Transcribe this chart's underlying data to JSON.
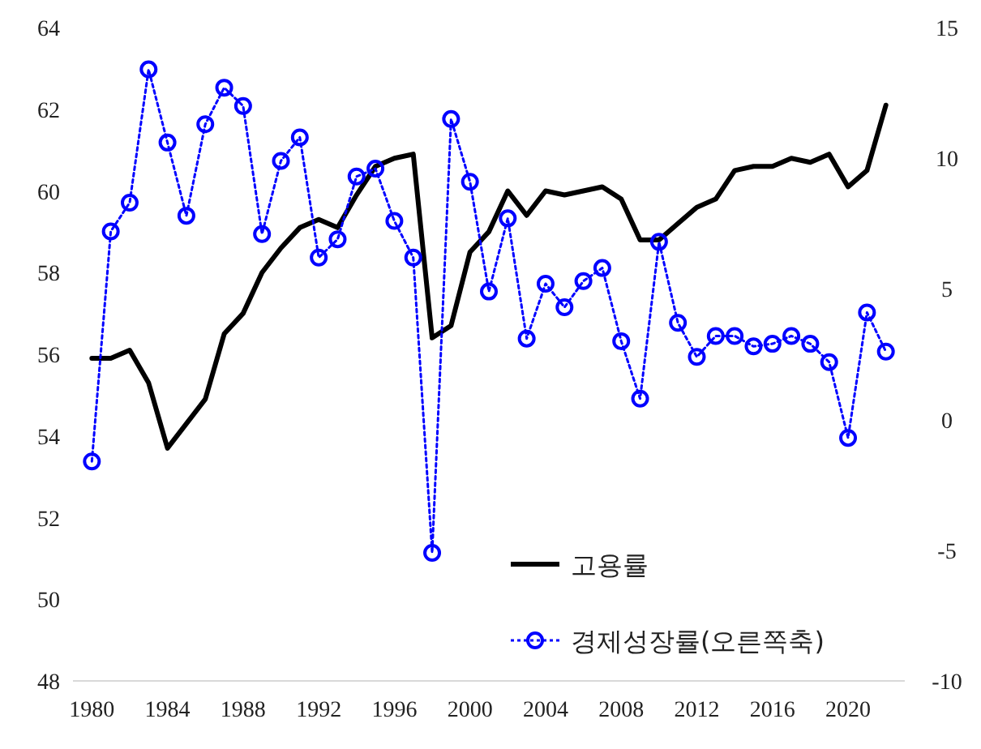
{
  "chart_data": {
    "type": "line",
    "x": [
      1980,
      1981,
      1982,
      1983,
      1984,
      1985,
      1986,
      1987,
      1988,
      1989,
      1990,
      1991,
      1992,
      1993,
      1994,
      1995,
      1996,
      1997,
      1998,
      1999,
      2000,
      2001,
      2002,
      2003,
      2004,
      2005,
      2006,
      2007,
      2008,
      2009,
      2010,
      2011,
      2012,
      2013,
      2014,
      2015,
      2016,
      2017,
      2018,
      2019,
      2020,
      2021,
      2022
    ],
    "xlim": [
      1979,
      2023
    ],
    "xticks": [
      1980,
      1984,
      1988,
      1992,
      1996,
      2000,
      2004,
      2008,
      2012,
      2016,
      2020
    ],
    "ylim": [
      48,
      64
    ],
    "yticks": [
      48,
      50,
      52,
      54,
      56,
      58,
      60,
      62,
      64
    ],
    "y2lim": [
      -10,
      15
    ],
    "y2ticks": [
      -10,
      -5,
      0,
      5,
      10,
      15
    ],
    "grid": false,
    "legend": "bottom right",
    "series": [
      {
        "name": "고용률",
        "color": "#000000",
        "marker": "none",
        "line_style": "solid",
        "values": [
          55.9,
          55.9,
          56.1,
          55.3,
          53.7,
          54.3,
          54.9,
          56.5,
          57.0,
          58.0,
          58.6,
          59.1,
          59.3,
          59.1,
          59.9,
          60.6,
          60.8,
          60.9,
          56.4,
          56.7,
          58.5,
          59.0,
          60.0,
          59.4,
          60.0,
          59.9,
          60.0,
          60.1,
          59.8,
          58.8,
          58.8,
          59.2,
          59.6,
          59.8,
          60.5,
          60.6,
          60.6,
          60.8,
          60.7,
          60.9,
          60.1,
          60.5,
          62.1
        ]
      },
      {
        "name": "경제성장률(오른쪽축)",
        "color": "#0000ff",
        "axis": "y2",
        "marker": "circle",
        "line_style": "dotted",
        "values": [
          -1.6,
          7.2,
          8.3,
          13.4,
          10.6,
          7.8,
          11.3,
          12.7,
          12.0,
          7.1,
          9.9,
          10.8,
          6.2,
          6.9,
          9.3,
          9.6,
          7.6,
          6.2,
          -5.1,
          11.5,
          9.1,
          4.9,
          7.7,
          3.1,
          5.2,
          4.3,
          5.3,
          5.8,
          3.0,
          0.8,
          6.8,
          3.7,
          2.4,
          3.2,
          3.2,
          2.8,
          2.9,
          3.2,
          2.9,
          2.2,
          -0.7,
          4.1,
          2.6
        ]
      }
    ]
  }
}
